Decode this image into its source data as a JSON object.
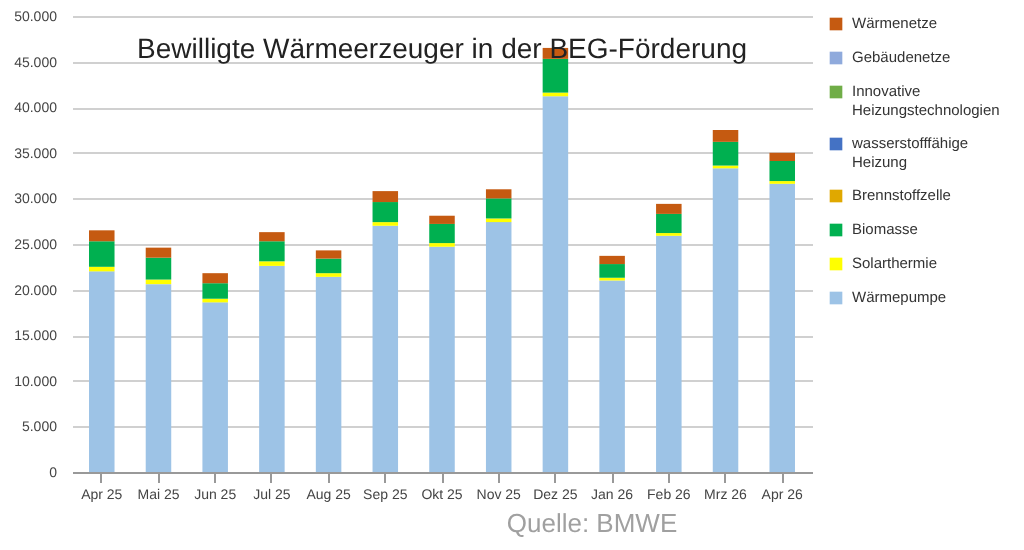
{
  "chart_data": {
    "type": "bar",
    "title": "Bewilligte Wärmeerzeuger in der BEG-Förderung",
    "stacked": true,
    "categories": [
      "Apr 25",
      "Mai 25",
      "Jun 25",
      "Jul 25",
      "Aug 25",
      "Sep 25",
      "Okt 25",
      "Nov 25",
      "Dez 25",
      "Jan 26",
      "Feb 26",
      "Mrz 26",
      "Apr 26"
    ],
    "series": [
      {
        "name": "Wärmepumpe",
        "color": "#9dc3e6",
        "values": [
          22000,
          20600,
          18600,
          22600,
          21400,
          27000,
          24700,
          27400,
          41200,
          21000,
          25900,
          33300,
          31600
        ]
      },
      {
        "name": "Solarthermie",
        "color": "#ffff00",
        "values": [
          500,
          500,
          400,
          500,
          400,
          400,
          400,
          400,
          400,
          300,
          300,
          300,
          300
        ]
      },
      {
        "name": "Biomasse",
        "color": "#00b050",
        "values": [
          2800,
          2400,
          1700,
          2200,
          1600,
          2200,
          2100,
          2200,
          3700,
          1500,
          2100,
          2600,
          2200
        ]
      },
      {
        "name": "Brennstoffzelle",
        "color": "#e0a800",
        "values": [
          0,
          0,
          0,
          0,
          0,
          0,
          0,
          0,
          0,
          0,
          0,
          0,
          0
        ]
      },
      {
        "name": "wasserstofffähige Heizung",
        "color": "#4472c4",
        "values": [
          0,
          0,
          0,
          0,
          0,
          0,
          0,
          0,
          0,
          0,
          0,
          0,
          0
        ]
      },
      {
        "name": "Innovative Heizungstechnologien",
        "color": "#70ad47",
        "values": [
          0,
          0,
          0,
          0,
          0,
          0,
          0,
          0,
          0,
          0,
          0,
          0,
          0
        ]
      },
      {
        "name": "Gebäudenetze",
        "color": "#8faadc",
        "values": [
          0,
          0,
          0,
          0,
          0,
          0,
          0,
          0,
          0,
          0,
          0,
          0,
          0
        ]
      },
      {
        "name": "Wärmenetze",
        "color": "#c55a11",
        "values": [
          1200,
          1100,
          1100,
          1000,
          900,
          1200,
          900,
          1000,
          1200,
          900,
          1100,
          1300,
          900
        ]
      }
    ],
    "ylim": [
      0,
      50000
    ],
    "yticks": [
      {
        "value": 0,
        "label": "0"
      },
      {
        "value": 5000,
        "label": "5.000"
      },
      {
        "value": 10000,
        "label": "10.000"
      },
      {
        "value": 15000,
        "label": "15.000"
      },
      {
        "value": 20000,
        "label": "20.000"
      },
      {
        "value": 25000,
        "label": "25.000"
      },
      {
        "value": 30000,
        "label": "30.000"
      },
      {
        "value": 35000,
        "label": "35.000"
      },
      {
        "value": 40000,
        "label": "40.000"
      },
      {
        "value": 45000,
        "label": "45.000"
      },
      {
        "value": 50000,
        "label": "50.000"
      }
    ],
    "grid": "y",
    "legend": "right",
    "annotations": [
      "Quelle: BMWE"
    ]
  }
}
